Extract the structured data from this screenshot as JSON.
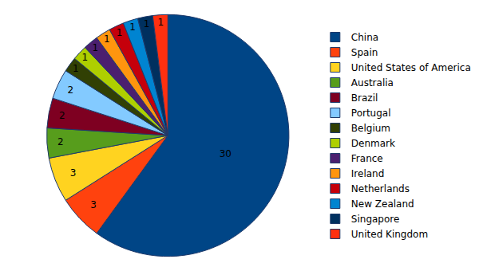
{
  "chart_data": {
    "type": "pie",
    "categories": [
      "China",
      "Spain",
      "United States of America",
      "Australia",
      "Brazil",
      "Portugal",
      "Belgium",
      "Denmark",
      "France",
      "Ireland",
      "Netherlands",
      "New Zealand",
      "Singapore",
      "United Kingdom"
    ],
    "values": [
      30,
      3,
      3,
      2,
      2,
      2,
      1,
      1,
      1,
      1,
      1,
      1,
      1,
      1
    ],
    "colors": [
      "#004586",
      "#ff420e",
      "#ffd320",
      "#579d1c",
      "#7e0021",
      "#83caff",
      "#314004",
      "#aecf00",
      "#4b1f6f",
      "#ff950e",
      "#c5000b",
      "#0084d1",
      "#00305f",
      "#ff3010"
    ],
    "data_labels": true,
    "legend": "right"
  }
}
